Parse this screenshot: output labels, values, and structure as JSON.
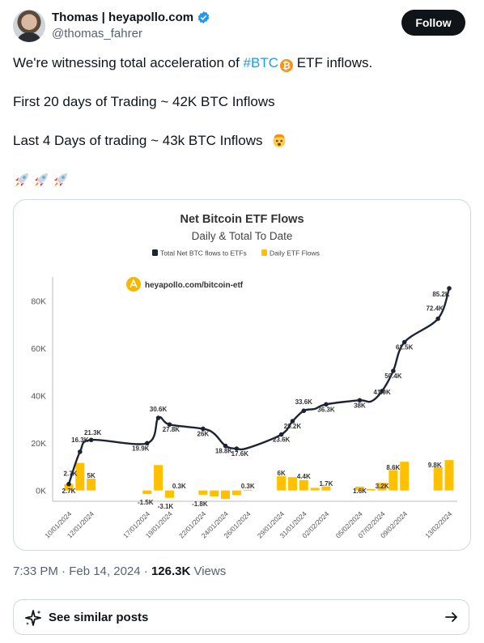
{
  "author": {
    "name": "Thomas | heyapollo.com",
    "handle": "@thomas_fahrer",
    "follow_label": "Follow"
  },
  "tweet": {
    "line1_pre": "We're witnessing total acceleration of ",
    "hashtag": "#BTC",
    "btc_symbol": "₿",
    "line1_post": " ETF inflows.",
    "line2": "First 20 days of Trading ~ 42K BTC Inflows",
    "line3": "Last 4 Days of trading ~ 43k BTC Inflows"
  },
  "meta": {
    "time": "7:33 PM · Feb 14, 2024 · ",
    "views": "126.3K",
    "views_label": " Views"
  },
  "similar": {
    "label": "See similar posts"
  },
  "icons": {
    "verified": "verified-badge-icon",
    "rocket": "rocket-icon",
    "exploding_head": "exploding-head-icon",
    "sparkle": "sparkle-icon",
    "arrow": "arrow-right-icon"
  },
  "colors": {
    "line": "#1c2333",
    "bar": "#ffc000",
    "accent": "#1d9bf0"
  },
  "chart_data": {
    "type": "bar+line",
    "title": "Net Bitcoin ETF Flows",
    "subtitle": "Daily & Total To Date",
    "watermark": "heyapollo.com/bitcoin-etf",
    "legend": [
      {
        "name": "Total Net BTC flows to ETFs",
        "color": "#1c2333",
        "shape": "square"
      },
      {
        "name": "Daily ETF Flows",
        "color": "#ffc000",
        "shape": "square"
      }
    ],
    "legend_position": "top",
    "y_ticks": [
      "0K",
      "20K",
      "40K",
      "60K",
      "80K"
    ],
    "ylim": [
      -9000,
      90000
    ],
    "x_tick_labels": [
      "10/01/2024",
      "12/01/2024",
      "17/01/2024",
      "19/01/2024",
      "22/01/2024",
      "24/01/2024",
      "26/01/2024",
      "29/01/2024",
      "31/01/2024",
      "02/02/2024",
      "05/02/2024",
      "07/02/2024",
      "09/02/2024",
      "13/02/2024"
    ],
    "x_tick_days": [
      0,
      2,
      7,
      9,
      12,
      14,
      16,
      19,
      21,
      23,
      26,
      28,
      30,
      34
    ],
    "days": [
      0,
      1,
      2,
      7,
      8,
      9,
      12,
      13,
      14,
      15,
      16,
      19,
      20,
      21,
      22,
      23,
      26,
      27,
      28,
      29,
      30,
      33,
      34
    ],
    "total": [
      2700,
      16300,
      21300,
      19900,
      30600,
      27800,
      26000,
      23900,
      18800,
      17600,
      17900,
      23600,
      29200,
      33600,
      34400,
      36300,
      38000,
      37500,
      41900,
      50400,
      62500,
      72400,
      85200
    ],
    "daily": [
      2700,
      11600,
      5000,
      -1500,
      10700,
      -3100,
      -1800,
      -2500,
      -3600,
      -2000,
      300,
      6000,
      5600,
      4400,
      1100,
      1700,
      1600,
      600,
      3200,
      8600,
      12100,
      9800,
      12800
    ],
    "total_labels": [
      {
        "day": 0,
        "text": "2.7K"
      },
      {
        "day": 1,
        "text": "16.3K"
      },
      {
        "day": 2,
        "text": "21.3K"
      },
      {
        "day": 7,
        "text": "19.9K"
      },
      {
        "day": 8,
        "text": "30.6K"
      },
      {
        "day": 9,
        "text": "27.8K"
      },
      {
        "day": 12,
        "text": "26K"
      },
      {
        "day": 14,
        "text": "18.8K"
      },
      {
        "day": 15,
        "text": "17.6K"
      },
      {
        "day": 19,
        "text": "23.6K"
      },
      {
        "day": 20,
        "text": "29.2K"
      },
      {
        "day": 21,
        "text": "33.6K"
      },
      {
        "day": 23,
        "text": "36.3K"
      },
      {
        "day": 26,
        "text": "38K"
      },
      {
        "day": 28,
        "text": "41.9K"
      },
      {
        "day": 29,
        "text": "50.4K"
      },
      {
        "day": 30,
        "text": "62.5K"
      },
      {
        "day": 33,
        "text": "72.4K"
      },
      {
        "day": 34,
        "text": "85.2K"
      }
    ],
    "daily_labels": [
      {
        "day": 0,
        "text": "2.7K"
      },
      {
        "day": 2,
        "text": "5K"
      },
      {
        "day": 7,
        "text": "-1.5K"
      },
      {
        "day": 9,
        "text": "-3.1K"
      },
      {
        "day": 9.5,
        "text": "0.3K"
      },
      {
        "day": 12,
        "text": "-1.8K"
      },
      {
        "day": 16,
        "text": "0.3K"
      },
      {
        "day": 19,
        "text": "6K"
      },
      {
        "day": 21,
        "text": "4.4K"
      },
      {
        "day": 23,
        "text": "1.7K"
      },
      {
        "day": 26,
        "text": "1.6K"
      },
      {
        "day": 28,
        "text": "3.2K"
      },
      {
        "day": 29,
        "text": "8.6K"
      },
      {
        "day": 33,
        "text": "9.8K"
      }
    ]
  }
}
